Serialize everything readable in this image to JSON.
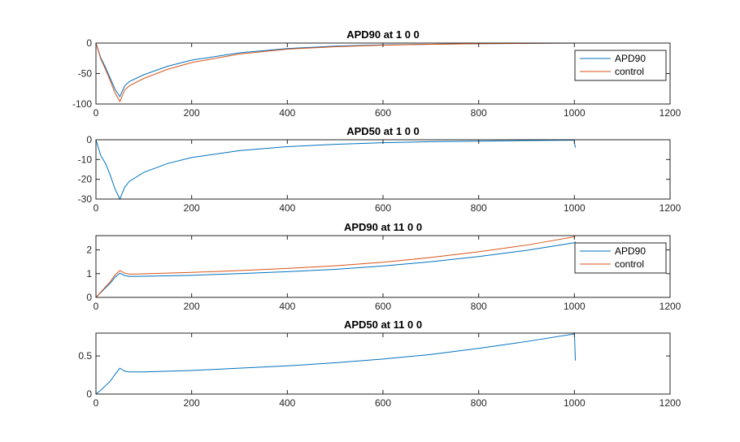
{
  "colors": {
    "blue": "#0072BD",
    "orange": "#D95319",
    "axis": "#262626",
    "background": "#ffffff"
  },
  "chart_data": [
    {
      "type": "line",
      "title": "APD90 at 1 0 0",
      "xlim": [
        0,
        1200
      ],
      "ylim": [
        -100,
        0
      ],
      "xticks": [
        0,
        200,
        400,
        600,
        800,
        1000,
        1200
      ],
      "yticks": [
        -100,
        -50,
        0
      ],
      "xtick_labels": [
        "0",
        "200",
        "400",
        "600",
        "800",
        "1000",
        "1200"
      ],
      "ytick_labels": [
        "-100",
        "-50",
        "0"
      ],
      "legend": "top-right",
      "grid": false,
      "series": [
        {
          "name": "APD90",
          "color": "#0072BD",
          "x": [
            0,
            5,
            10,
            20,
            30,
            40,
            50,
            60,
            70,
            100,
            150,
            200,
            300,
            400,
            500,
            600,
            700,
            800,
            900,
            1000,
            1000
          ],
          "y": [
            0,
            -12,
            -24,
            -40,
            -58,
            -76,
            -88,
            -70,
            -63,
            -52,
            -38,
            -28,
            -16,
            -9,
            -5,
            -3,
            -2,
            -1,
            -0.5,
            0,
            -1
          ]
        },
        {
          "name": "control",
          "color": "#D95319",
          "x": [
            0,
            5,
            10,
            20,
            30,
            40,
            50,
            60,
            70,
            100,
            150,
            200,
            300,
            400,
            500,
            600,
            700,
            800,
            900,
            1000,
            1000
          ],
          "y": [
            0,
            -13,
            -26,
            -43,
            -62,
            -82,
            -96,
            -77,
            -70,
            -58,
            -43,
            -32,
            -18,
            -10,
            -6,
            -3.5,
            -2,
            -1,
            -0.5,
            0,
            -0.5
          ]
        }
      ]
    },
    {
      "type": "line",
      "title": "APD50 at 1 0 0",
      "xlim": [
        0,
        1200
      ],
      "ylim": [
        -30,
        0
      ],
      "xticks": [
        0,
        200,
        400,
        600,
        800,
        1000,
        1200
      ],
      "yticks": [
        -30,
        -20,
        -10,
        0
      ],
      "xtick_labels": [
        "0",
        "200",
        "400",
        "600",
        "800",
        "1000",
        "1200"
      ],
      "ytick_labels": [
        "-30",
        "-20",
        "-10",
        "0"
      ],
      "grid": false,
      "series": [
        {
          "color": "#0072BD",
          "x": [
            0,
            5,
            10,
            20,
            30,
            40,
            50,
            60,
            70,
            100,
            150,
            200,
            300,
            400,
            500,
            600,
            700,
            800,
            900,
            1000,
            1000,
            1002
          ],
          "y": [
            0,
            -4,
            -8,
            -12,
            -18,
            -25,
            -30,
            -24,
            -21,
            -16.5,
            -12,
            -9,
            -5.5,
            -3.5,
            -2.3,
            -1.5,
            -1,
            -0.7,
            -0.4,
            -0.2,
            -1,
            -4
          ]
        }
      ]
    },
    {
      "type": "line",
      "title": "APD90 at 11 0 0",
      "xlim": [
        0,
        1200
      ],
      "ylim": [
        0,
        2.6
      ],
      "xticks": [
        0,
        200,
        400,
        600,
        800,
        1000,
        1200
      ],
      "yticks": [
        0,
        1,
        2
      ],
      "xtick_labels": [
        "0",
        "200",
        "400",
        "600",
        "800",
        "1000",
        "1200"
      ],
      "ytick_labels": [
        "0",
        "1",
        "2"
      ],
      "legend": "top-right",
      "grid": false,
      "series": [
        {
          "name": "APD90",
          "color": "#0072BD",
          "x": [
            0,
            10,
            20,
            30,
            40,
            50,
            60,
            70,
            100,
            200,
            300,
            400,
            500,
            600,
            700,
            800,
            900,
            1000,
            1002
          ],
          "y": [
            0,
            0.2,
            0.4,
            0.6,
            0.85,
            1.02,
            0.92,
            0.88,
            0.89,
            0.93,
            1.0,
            1.08,
            1.18,
            1.32,
            1.5,
            1.72,
            1.98,
            2.3,
            2.35
          ]
        },
        {
          "name": "control",
          "color": "#D95319",
          "x": [
            0,
            10,
            20,
            30,
            40,
            50,
            60,
            70,
            100,
            200,
            300,
            400,
            500,
            600,
            700,
            800,
            900,
            1000,
            1002
          ],
          "y": [
            0,
            0.22,
            0.44,
            0.66,
            0.95,
            1.13,
            1.02,
            0.98,
            0.99,
            1.05,
            1.13,
            1.22,
            1.33,
            1.48,
            1.68,
            1.92,
            2.2,
            2.55,
            2.6
          ]
        }
      ]
    },
    {
      "type": "line",
      "title": "APD50 at 11 0 0",
      "xlim": [
        0,
        1200
      ],
      "ylim": [
        0,
        0.8
      ],
      "xticks": [
        0,
        200,
        400,
        600,
        800,
        1000,
        1200
      ],
      "yticks": [
        0,
        0.5
      ],
      "xtick_labels": [
        "0",
        "200",
        "400",
        "600",
        "800",
        "1000",
        "1200"
      ],
      "ytick_labels": [
        "0",
        "0.5"
      ],
      "grid": false,
      "series": [
        {
          "color": "#0072BD",
          "x": [
            0,
            10,
            20,
            30,
            40,
            50,
            60,
            70,
            100,
            200,
            300,
            400,
            500,
            600,
            700,
            800,
            900,
            1000,
            1000,
            1002
          ],
          "y": [
            0,
            0.05,
            0.11,
            0.17,
            0.26,
            0.34,
            0.3,
            0.29,
            0.29,
            0.31,
            0.34,
            0.37,
            0.41,
            0.46,
            0.52,
            0.6,
            0.69,
            0.79,
            0.82,
            0.44
          ]
        }
      ]
    }
  ]
}
